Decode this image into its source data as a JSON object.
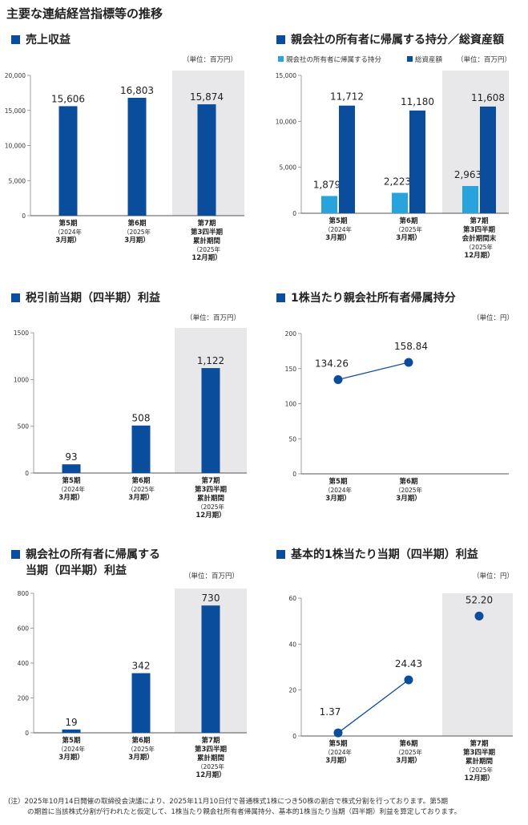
{
  "page_title": "主要な連結経営指標等の推移",
  "colors": {
    "bar_dark": "#0a4d9d",
    "bar_light": "#29a3dc",
    "shade": "#e8e8ea",
    "line": "#0a4d9d"
  },
  "chart_data": [
    {
      "type": "bar",
      "title": "売上収益",
      "unit": "（単位：百万円）",
      "ylim": [
        0,
        20000
      ],
      "yticks": [
        "0",
        "5,000",
        "10,000",
        "15,000",
        "20,000"
      ],
      "categories": [
        [
          "第5期",
          "（2024年",
          "3月期）"
        ],
        [
          "第6期",
          "（2025年",
          "3月期）"
        ],
        [
          "第7期",
          "第3四半期",
          "累計期間",
          "（2025年",
          "12月期）"
        ]
      ],
      "values": [
        15606,
        16803,
        15874
      ],
      "labels": [
        "15,606",
        "16,803",
        "15,874"
      ],
      "shaded_index": 2
    },
    {
      "type": "bar",
      "title": "親会社の所有者に帰属する持分／総資産額",
      "unit": "（単位：百万円）",
      "legend": [
        "親会社の所有者に帰属する持分",
        "総資産額"
      ],
      "ylim": [
        0,
        15000
      ],
      "yticks": [
        "0",
        "5,000",
        "10,000",
        "15,000"
      ],
      "categories": [
        [
          "第5期",
          "（2024年",
          "3月期）"
        ],
        [
          "第6期",
          "（2025年",
          "3月期）"
        ],
        [
          "第7期",
          "第3四半期",
          "会計期間末",
          "（2025年",
          "12月期）"
        ]
      ],
      "series": [
        {
          "name": "親会社の所有者に帰属する持分",
          "values": [
            1879,
            2223,
            2963
          ],
          "labels": [
            "1,879",
            "2,223",
            "2,963"
          ]
        },
        {
          "name": "総資産額",
          "values": [
            11712,
            11180,
            11608
          ],
          "labels": [
            "11,712",
            "11,180",
            "11,608"
          ]
        }
      ],
      "shaded_index": 2
    },
    {
      "type": "bar",
      "title": "税引前当期（四半期）利益",
      "unit": "（単位：百万円）",
      "ylim": [
        0,
        1500
      ],
      "yticks": [
        "0",
        "500",
        "1000",
        "1500"
      ],
      "categories": [
        [
          "第5期",
          "（2024年",
          "3月期）"
        ],
        [
          "第6期",
          "（2025年",
          "3月期）"
        ],
        [
          "第7期",
          "第3四半期",
          "累計期間",
          "（2025年",
          "12月期）"
        ]
      ],
      "values": [
        93,
        508,
        1122
      ],
      "labels": [
        "93",
        "508",
        "1,122"
      ],
      "shaded_index": 2
    },
    {
      "type": "line",
      "title": "1株当たり親会社所有者帰属持分",
      "unit": "（単位：円）",
      "ylim": [
        0,
        200
      ],
      "yticks": [
        "0",
        "50",
        "100",
        "150",
        "200"
      ],
      "categories": [
        [
          "第5期",
          "（2024年",
          "3月期）"
        ],
        [
          "第6期",
          "（2025年",
          "3月期）"
        ]
      ],
      "values": [
        134.26,
        158.84
      ],
      "labels": [
        "134.26",
        "158.84"
      ]
    },
    {
      "type": "bar",
      "title": "親会社の所有者に帰属する当期（四半期）利益",
      "title_lines": [
        "親会社の所有者に帰属する",
        "当期（四半期）利益"
      ],
      "unit": "（単位：百万円）",
      "ylim": [
        0,
        800
      ],
      "yticks": [
        "0",
        "200",
        "400",
        "600",
        "800"
      ],
      "categories": [
        [
          "第5期",
          "（2024年",
          "3月期）"
        ],
        [
          "第6期",
          "（2025年",
          "3月期）"
        ],
        [
          "第7期",
          "第3四半期",
          "累計期間",
          "（2025年",
          "12月期）"
        ]
      ],
      "values": [
        19,
        342,
        730
      ],
      "labels": [
        "19",
        "342",
        "730"
      ],
      "shaded_index": 2
    },
    {
      "type": "scatter",
      "title": "基本的1株当たり当期（四半期）利益",
      "unit": "（単位：円）",
      "ylim": [
        0,
        60
      ],
      "yticks": [
        "0",
        "20",
        "40",
        "60"
      ],
      "categories": [
        [
          "第5期",
          "（2024年",
          "3月期）"
        ],
        [
          "第6期",
          "（2025年",
          "3月期）"
        ],
        [
          "第7期",
          "第3四半期",
          "累計期間",
          "（2025年",
          "12月期）"
        ]
      ],
      "values": [
        1.37,
        24.43,
        52.2
      ],
      "labels": [
        "1.37",
        "24.43",
        "52.20"
      ],
      "connected": [
        0,
        1
      ],
      "shaded_index": 2
    }
  ],
  "note": {
    "line1": "(注）2025年10月14日開催の取締役会決議により、2025年11月10日付で普通株式1株につき50株の割合で株式分割を行っております。第5期",
    "line2": "の期首に当該株式分割が行われたと仮定して、1株当たり親会社所有者帰属持分、基本的1株当たり当期（四半期）利益を算定しております。"
  }
}
